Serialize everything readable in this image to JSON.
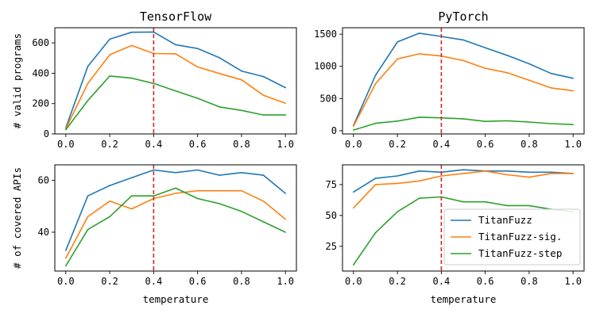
{
  "figure": {
    "xlabel": "temperature"
  },
  "chart_data": [
    {
      "type": "line",
      "title": "TensorFlow",
      "xlabel": "",
      "ylabel": "# valid programs",
      "xlim": [
        -0.05,
        1.05
      ],
      "ylim": [
        0,
        700
      ],
      "xticks": [
        "0.0",
        "0.2",
        "0.4",
        "0.6",
        "0.8",
        "1.0"
      ],
      "yticks": [
        "0",
        "200",
        "400",
        "600"
      ],
      "x": [
        0.0,
        0.1,
        0.2,
        0.3,
        0.4,
        0.5,
        0.6,
        0.7,
        0.8,
        0.9,
        1.0
      ],
      "series": [
        {
          "name": "TitanFuzz",
          "color": "#1f77b4",
          "values": [
            40,
            445,
            625,
            670,
            672,
            588,
            563,
            502,
            415,
            378,
            305
          ]
        },
        {
          "name": "TitanFuzz-sig.",
          "color": "#ff7f0e",
          "values": [
            35,
            333,
            522,
            583,
            530,
            528,
            442,
            398,
            357,
            255,
            202
          ]
        },
        {
          "name": "TitanFuzz-step",
          "color": "#2ca02c",
          "values": [
            28,
            220,
            382,
            368,
            333,
            283,
            235,
            178,
            155,
            125,
            125
          ]
        }
      ],
      "vline": {
        "x": 0.4,
        "color": "#d62728"
      }
    },
    {
      "type": "line",
      "title": "PyTorch",
      "xlabel": "",
      "ylabel": "",
      "xlim": [
        -0.05,
        1.05
      ],
      "ylim": [
        -50,
        1600
      ],
      "xticks": [
        "0.0",
        "0.2",
        "0.4",
        "0.6",
        "0.8",
        "1.0"
      ],
      "yticks": [
        "0",
        "500",
        "1000",
        "1500"
      ],
      "x": [
        0.0,
        0.1,
        0.2,
        0.3,
        0.4,
        0.5,
        0.6,
        0.7,
        0.8,
        0.9,
        1.0
      ],
      "series": [
        {
          "name": "TitanFuzz",
          "color": "#1f77b4",
          "values": [
            80,
            860,
            1380,
            1515,
            1465,
            1410,
            1290,
            1170,
            1040,
            890,
            815
          ]
        },
        {
          "name": "TitanFuzz-sig.",
          "color": "#ff7f0e",
          "values": [
            70,
            730,
            1115,
            1195,
            1160,
            1090,
            970,
            900,
            785,
            665,
            620
          ]
        },
        {
          "name": "TitanFuzz-step",
          "color": "#2ca02c",
          "values": [
            10,
            115,
            150,
            210,
            200,
            185,
            145,
            155,
            135,
            110,
            95
          ]
        }
      ],
      "vline": {
        "x": 0.4,
        "color": "#d62728"
      }
    },
    {
      "type": "line",
      "title": "",
      "xlabel": "temperature",
      "ylabel": "# of covered APIs",
      "xlim": [
        -0.05,
        1.05
      ],
      "ylim": [
        25,
        66
      ],
      "xticks": [
        "0.0",
        "0.2",
        "0.4",
        "0.6",
        "0.8",
        "1.0"
      ],
      "yticks": [
        "40",
        "60"
      ],
      "x": [
        0.0,
        0.1,
        0.2,
        0.3,
        0.4,
        0.5,
        0.6,
        0.7,
        0.8,
        0.9,
        1.0
      ],
      "series": [
        {
          "name": "TitanFuzz",
          "color": "#1f77b4",
          "values": [
            33,
            54,
            58,
            61,
            64,
            63,
            64,
            62,
            63,
            62,
            55
          ]
        },
        {
          "name": "TitanFuzz-sig.",
          "color": "#ff7f0e",
          "values": [
            30,
            46,
            52,
            49,
            53,
            55,
            56,
            56,
            56,
            52,
            45
          ]
        },
        {
          "name": "TitanFuzz-step",
          "color": "#2ca02c",
          "values": [
            27,
            41,
            46,
            54,
            54,
            57,
            53,
            51,
            48,
            44,
            40
          ]
        }
      ],
      "vline": {
        "x": 0.4,
        "color": "#d62728"
      }
    },
    {
      "type": "line",
      "title": "",
      "xlabel": "temperature",
      "ylabel": "",
      "xlim": [
        -0.05,
        1.05
      ],
      "ylim": [
        5,
        91
      ],
      "xticks": [
        "0.0",
        "0.2",
        "0.4",
        "0.6",
        "0.8",
        "1.0"
      ],
      "yticks": [
        "25",
        "50",
        "75"
      ],
      "x": [
        0.0,
        0.1,
        0.2,
        0.3,
        0.4,
        0.5,
        0.6,
        0.7,
        0.8,
        0.9,
        1.0
      ],
      "series": [
        {
          "name": "TitanFuzz",
          "color": "#1f77b4",
          "values": [
            69,
            80,
            82,
            86,
            85,
            87,
            86,
            86,
            85,
            85,
            84
          ]
        },
        {
          "name": "TitanFuzz-sig.",
          "color": "#ff7f0e",
          "values": [
            56,
            75,
            76,
            78,
            82,
            84,
            86,
            83,
            81,
            84,
            84
          ]
        },
        {
          "name": "TitanFuzz-step",
          "color": "#2ca02c",
          "values": [
            10,
            36,
            53,
            64,
            65,
            61,
            61,
            58,
            58,
            55,
            53
          ]
        }
      ],
      "vline": {
        "x": 0.4,
        "color": "#d62728"
      },
      "legend": {
        "position": "lower-right",
        "entries": [
          "TitanFuzz",
          "TitanFuzz-sig.",
          "TitanFuzz-step"
        ]
      }
    }
  ]
}
